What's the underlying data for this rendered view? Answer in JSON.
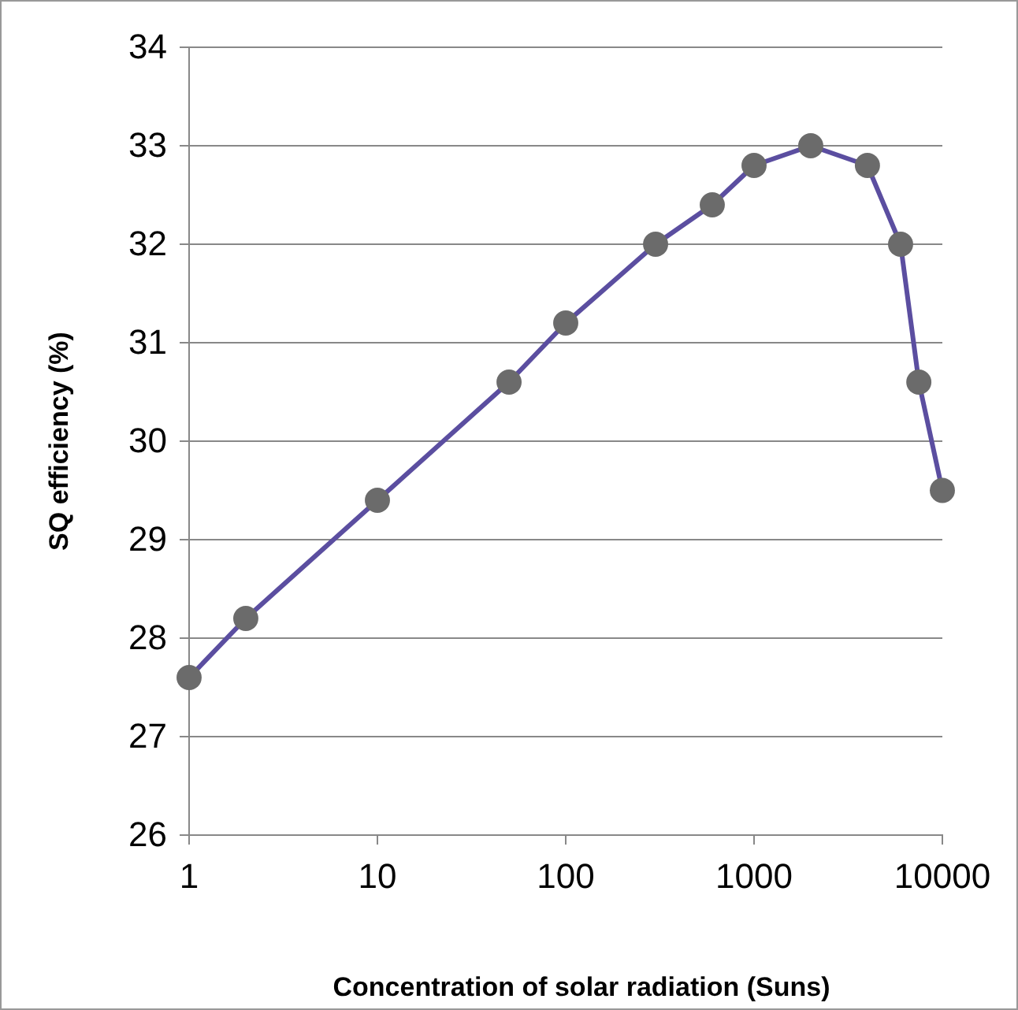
{
  "chart_data": {
    "type": "line",
    "xlabel": "Concentration of solar radiation  (Suns)",
    "ylabel": "SQ efficiency (%)",
    "log": "x",
    "x": [
      1,
      2,
      10,
      50,
      100,
      300,
      600,
      1000,
      2000,
      4000,
      6000,
      7500,
      10000
    ],
    "series": [
      {
        "color": "#5b4ea0",
        "values": [
          27.6,
          28.2,
          29.4,
          30.6,
          31.2,
          32.0,
          32.4,
          32.8,
          33.0,
          32.8,
          32.0,
          30.6,
          29.5
        ]
      }
    ],
    "xlim": [
      1,
      10000
    ],
    "xticks": [
      1,
      10,
      100,
      1000,
      10000
    ],
    "ylim": [
      26,
      34
    ],
    "yticks": [
      26,
      27,
      28,
      29,
      30,
      31,
      32,
      33,
      34
    ],
    "grid": "y",
    "marker": "circle",
    "line_style": "solid"
  }
}
